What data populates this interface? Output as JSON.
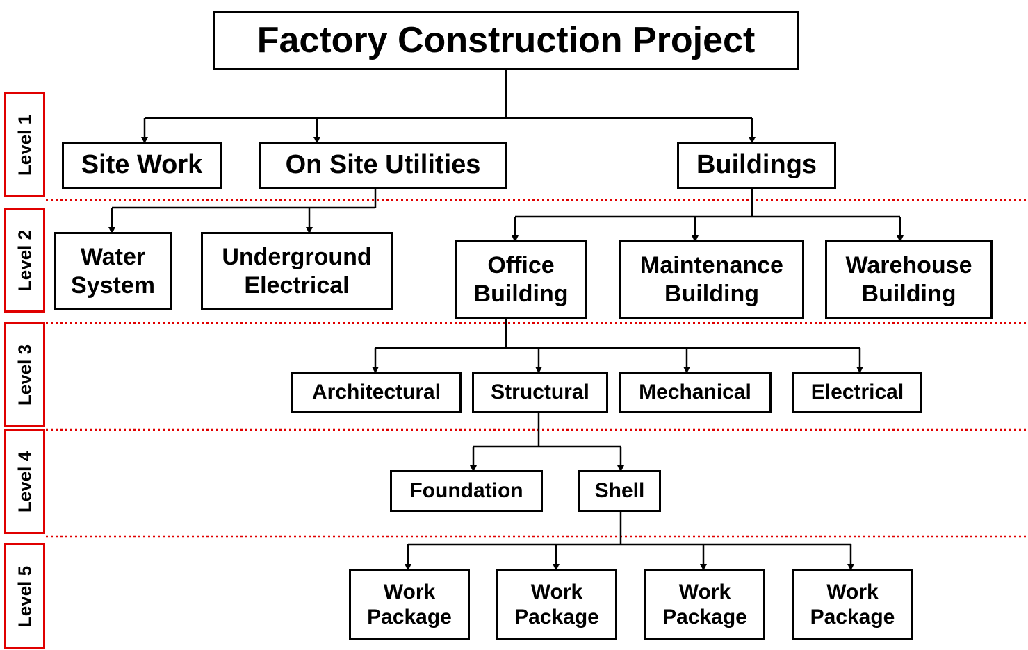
{
  "title": "Factory Construction Project",
  "levels": [
    "Level 1",
    "Level 2",
    "Level 3",
    "Level 4",
    "Level 5"
  ],
  "level1": {
    "site_work": "Site Work",
    "utilities": "On Site Utilities",
    "buildings": "Buildings"
  },
  "level2": {
    "water": [
      "Water",
      "System"
    ],
    "underground": [
      "Underground",
      "Electrical"
    ],
    "office": [
      "Office",
      "Building"
    ],
    "maintenance": [
      "Maintenance",
      "Building"
    ],
    "warehouse": [
      "Warehouse",
      "Building"
    ]
  },
  "level3": {
    "architectural": "Architectural",
    "structural": "Structural",
    "mechanical": "Mechanical",
    "electrical": "Electrical"
  },
  "level4": {
    "foundation": "Foundation",
    "shell": "Shell"
  },
  "level5": [
    [
      "Work",
      "Package"
    ],
    [
      "Work",
      "Package"
    ],
    [
      "Work",
      "Package"
    ],
    [
      "Work",
      "Package"
    ]
  ],
  "colors": {
    "box_border": "#000000",
    "level_border": "#e00000",
    "divider": "#e00000"
  }
}
